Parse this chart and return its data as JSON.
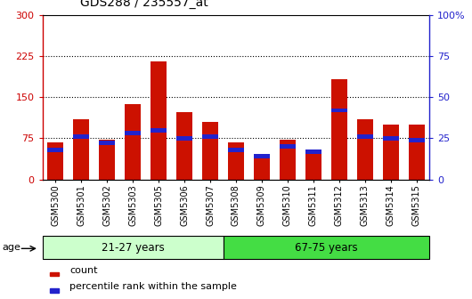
{
  "title": "GDS288 / 235557_at",
  "samples": [
    "GSM5300",
    "GSM5301",
    "GSM5302",
    "GSM5303",
    "GSM5305",
    "GSM5306",
    "GSM5307",
    "GSM5308",
    "GSM5309",
    "GSM5310",
    "GSM5311",
    "GSM5312",
    "GSM5313",
    "GSM5314",
    "GSM5315"
  ],
  "count_values": [
    68,
    110,
    73,
    138,
    215,
    122,
    105,
    68,
    43,
    73,
    55,
    182,
    110,
    100,
    100
  ],
  "percentile_values": [
    18,
    26,
    22,
    28,
    30,
    25,
    26,
    18,
    14,
    20,
    17,
    42,
    26,
    25,
    24
  ],
  "group1_label": "21-27 years",
  "group2_label": "67-75 years",
  "group1_count": 7,
  "group2_count": 8,
  "ylim_left": [
    0,
    300
  ],
  "ylim_right": [
    0,
    100
  ],
  "yticks_left": [
    0,
    75,
    150,
    225,
    300
  ],
  "yticks_right": [
    0,
    25,
    50,
    75,
    100
  ],
  "ylabel_left_color": "#cc0000",
  "ylabel_right_color": "#2222cc",
  "bar_color_red": "#cc1100",
  "bar_color_blue": "#2222cc",
  "group1_bg": "#ccffcc",
  "group2_bg": "#44dd44",
  "age_label": "age",
  "legend_count": "count",
  "legend_percentile": "percentile rank within the sample",
  "title_fontsize": 10,
  "tick_fontsize": 7,
  "bar_width": 0.6
}
